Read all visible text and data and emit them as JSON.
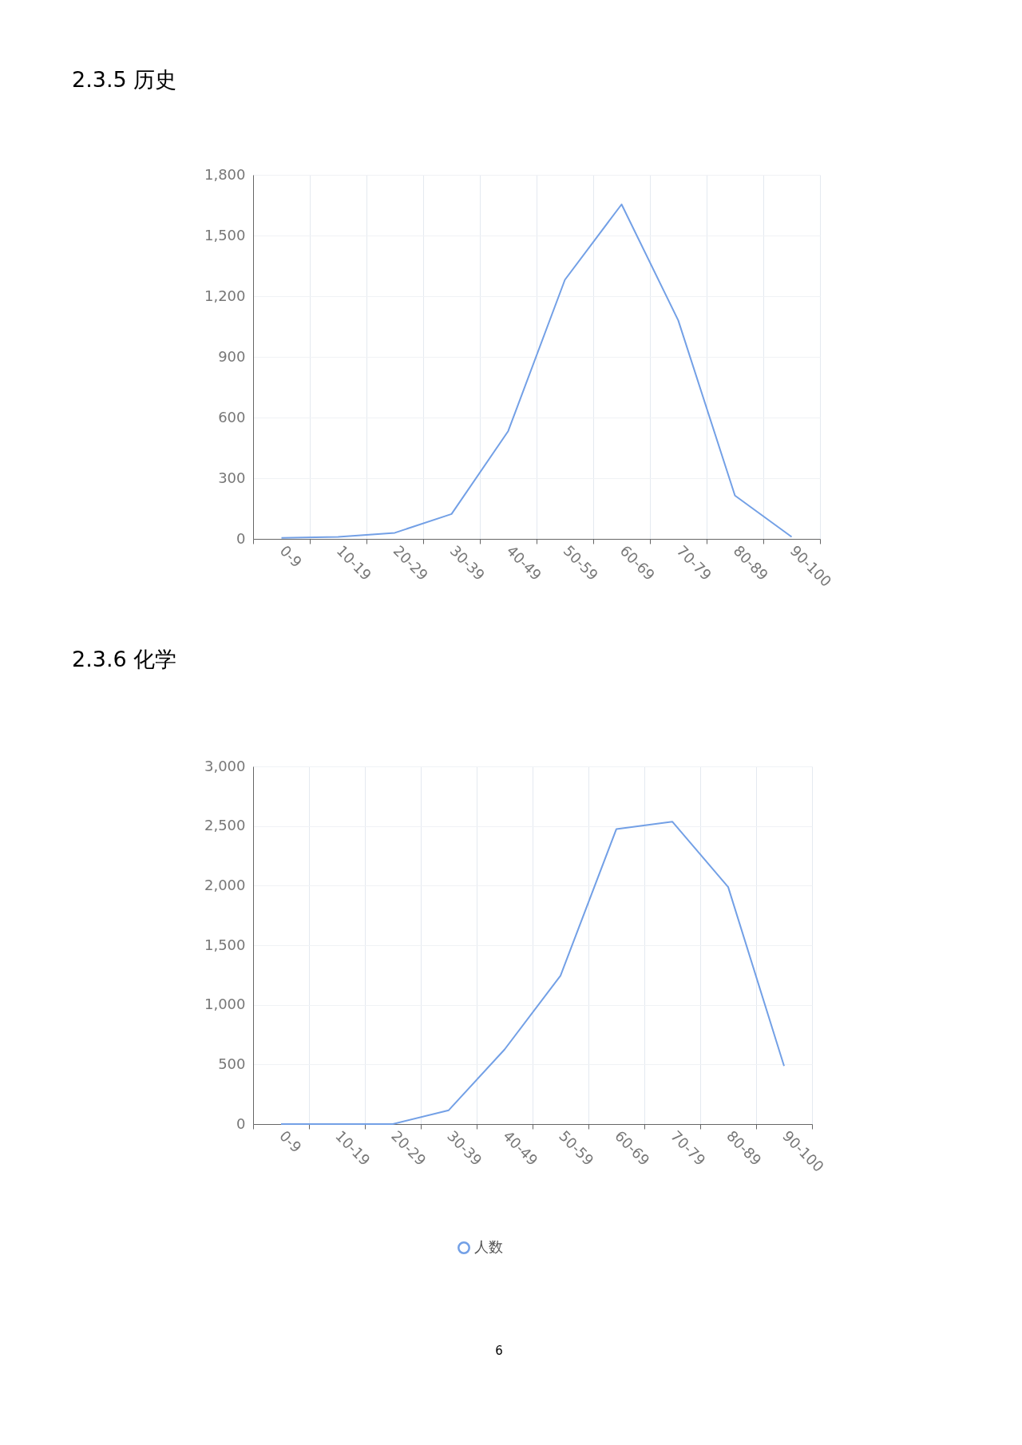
{
  "chart_data": [
    {
      "type": "line",
      "title": "2.3.5 历史",
      "categories": [
        "0-9",
        "10-19",
        "20-29",
        "30-39",
        "40-49",
        "50-59",
        "60-69",
        "70-79",
        "80-89",
        "90-100"
      ],
      "series": [
        {
          "color": "#73a0e6",
          "values": [
            5,
            10,
            30,
            123,
            533,
            1281,
            1654,
            1080,
            214,
            10
          ]
        }
      ],
      "ylim": [
        0,
        1800
      ],
      "yticks": [
        0,
        300,
        600,
        900,
        {
          "value": 1200,
          "label": "1,200"
        },
        {
          "value": 1500,
          "label": "1,500"
        },
        {
          "value": 1800,
          "label": "1,800"
        }
      ],
      "grid": true
    },
    {
      "type": "line",
      "title": "2.3.6 化学",
      "categories": [
        "0-9",
        "10-19",
        "20-29",
        "30-39",
        "40-49",
        "50-59",
        "60-69",
        "70-79",
        "80-89",
        "90-100"
      ],
      "series": [
        {
          "name": "人数",
          "color": "#73a0e6",
          "values": [
            0,
            0,
            0,
            116,
            626,
            1245,
            2475,
            2537,
            1988,
            487
          ]
        }
      ],
      "ylim": [
        0,
        3000
      ],
      "yticks": [
        0,
        500,
        {
          "value": 1000,
          "label": "1,000"
        },
        {
          "value": 1500,
          "label": "1,500"
        },
        {
          "value": 2000,
          "label": "2,000"
        },
        {
          "value": 2500,
          "label": "2,500"
        },
        {
          "value": 3000,
          "label": "3,000"
        }
      ],
      "grid": true,
      "legend": "bottom",
      "annotations": [
        "6"
      ]
    }
  ]
}
